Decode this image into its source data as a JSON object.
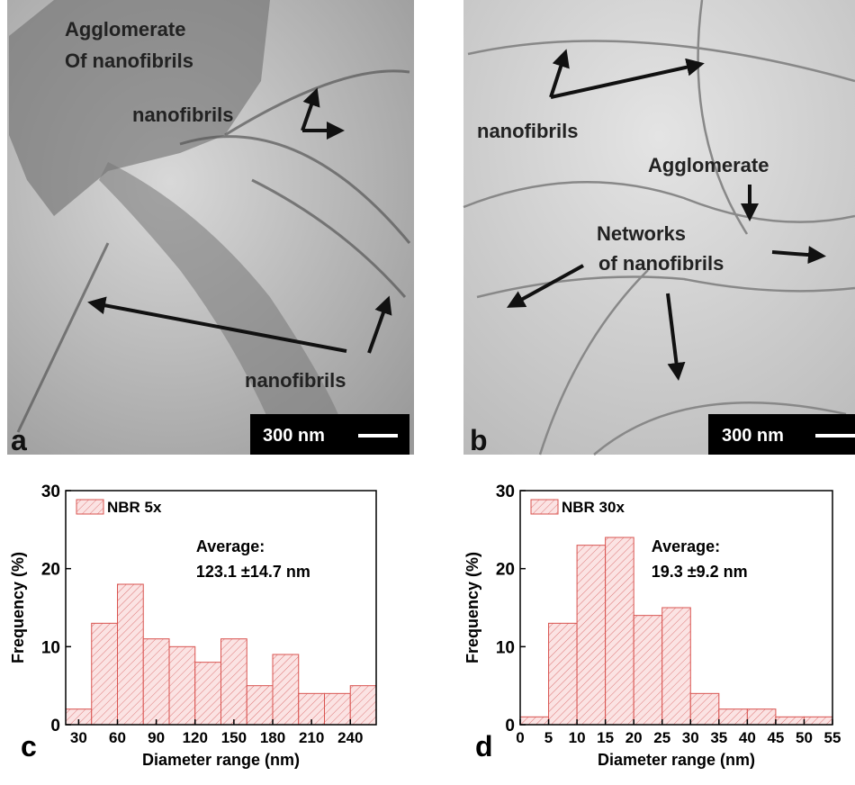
{
  "panels": [
    {
      "letter": "a",
      "scale_bar": "300 nm",
      "labels": [
        "Agglomerate",
        "Of nanofibrils",
        "nanofibrils",
        "nanofibrils"
      ]
    },
    {
      "letter": "b",
      "scale_bar": "300 nm",
      "labels": [
        "nanofibrils",
        "Agglomerate",
        "Networks",
        "of nanofibrils"
      ]
    }
  ],
  "chart_data": [
    {
      "type": "histogram",
      "panel_label": "c",
      "xlabel": "Diameter range (nm)",
      "ylabel": "Frequency (%)",
      "series": [
        {
          "name": "NBR 5x",
          "color": "#d9534f",
          "bins": [
            20,
            40,
            60,
            80,
            100,
            120,
            140,
            160,
            180,
            200,
            220,
            240,
            260
          ],
          "values": [
            2,
            13,
            18,
            11,
            10,
            8,
            11,
            5,
            9,
            4,
            4,
            5
          ]
        }
      ],
      "annotations": [
        "Average:",
        "123.1 ±14.7 nm"
      ],
      "xlim": [
        20,
        260
      ],
      "xticks": [
        30,
        60,
        90,
        120,
        150,
        180,
        210,
        240
      ],
      "ylim": [
        0,
        30
      ],
      "yticks": [
        0,
        10,
        20,
        30
      ]
    },
    {
      "type": "histogram",
      "panel_label": "d",
      "xlabel": "Diameter range (nm)",
      "ylabel": "Frequency (%)",
      "series": [
        {
          "name": "NBR 30x",
          "color": "#d9534f",
          "bins": [
            0,
            5,
            10,
            15,
            20,
            25,
            30,
            35,
            40,
            45,
            50,
            55
          ],
          "values": [
            1,
            13,
            23,
            24,
            14,
            15,
            4,
            2,
            2,
            1,
            1
          ]
        }
      ],
      "annotations": [
        "Average:",
        "19.3 ±9.2 nm"
      ],
      "xlim": [
        0,
        55
      ],
      "xticks": [
        0,
        5,
        10,
        15,
        20,
        25,
        30,
        35,
        40,
        45,
        50,
        55
      ],
      "ylim": [
        0,
        30
      ],
      "yticks": [
        0,
        10,
        20,
        30
      ]
    }
  ]
}
